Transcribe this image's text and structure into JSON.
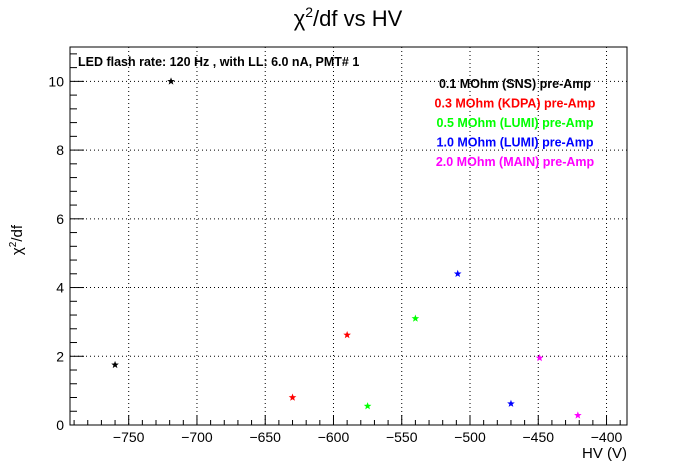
{
  "chart_data": {
    "type": "scatter",
    "title": "χ²/df vs HV",
    "title_parts": {
      "chi": "χ",
      "sup": "2",
      "rest": "/df vs HV"
    },
    "xlabel": "HV (V)",
    "ylabel_parts": {
      "chi": "χ",
      "sup": "2",
      "rest": "/df"
    },
    "xlim": [
      -793,
      -385
    ],
    "ylim": [
      0,
      11
    ],
    "x_ticks": [
      -750,
      -700,
      -650,
      -600,
      -550,
      -500,
      -450,
      -400
    ],
    "x_tick_labels": [
      "−750",
      "−700",
      "−650",
      "−600",
      "−550",
      "−500",
      "−450",
      "−400"
    ],
    "y_ticks": [
      0,
      2,
      4,
      6,
      8,
      10
    ],
    "y_tick_labels": [
      "0",
      "2",
      "4",
      "6",
      "8",
      "10"
    ],
    "grid": true,
    "annotation": "LED flash rate: 120 Hz , with LL: 6.0 nA, PMT# 1",
    "legend_position": "top-right",
    "series": [
      {
        "name": "0.1 MOhm (SNS) pre-Amp",
        "color": "#000000",
        "x": [
          -760,
          -719
        ],
        "y": [
          1.75,
          10.0
        ]
      },
      {
        "name": "0.3 MOhm (KDPA) pre-Amp",
        "color": "#ff0000",
        "x": [
          -630,
          -590
        ],
        "y": [
          0.8,
          2.62
        ]
      },
      {
        "name": "0.5 MOhm (LUMI) pre-Amp",
        "color": "#00ff00",
        "x": [
          -575,
          -540
        ],
        "y": [
          0.55,
          3.1
        ]
      },
      {
        "name": "1.0 MOhm (LUMI) pre-Amp",
        "color": "#0000ff",
        "x": [
          -509,
          -470
        ],
        "y": [
          4.4,
          0.62
        ]
      },
      {
        "name": "2.0 MOhm (MAIN) pre-Amp",
        "color": "#ff00ff",
        "x": [
          -449,
          -421
        ],
        "y": [
          1.95,
          0.28
        ]
      }
    ]
  }
}
